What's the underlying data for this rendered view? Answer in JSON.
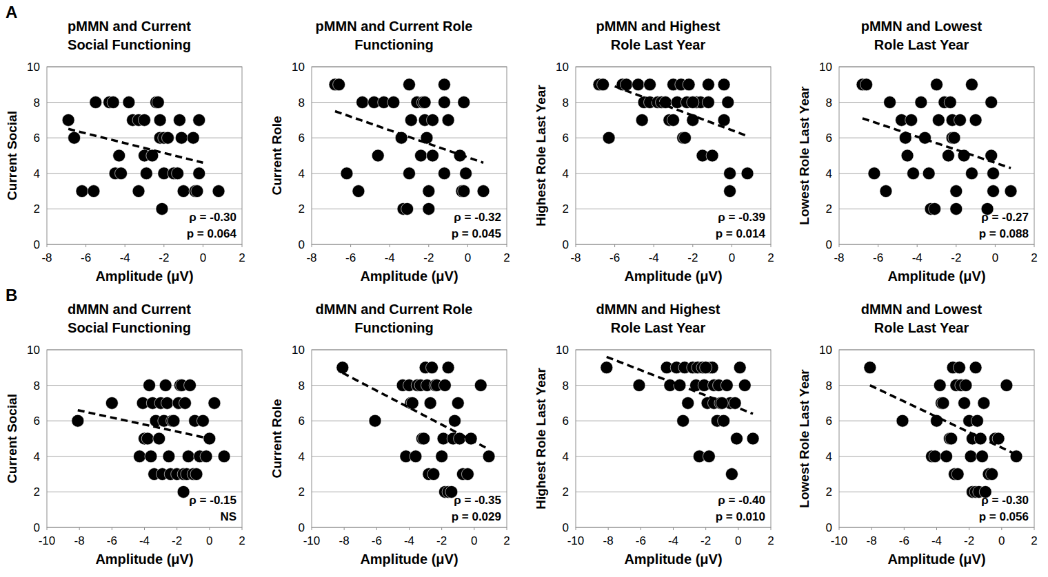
{
  "panel_labels": [
    "A",
    "B"
  ],
  "chart_data": [
    {
      "type": "scatter",
      "title": [
        "pMMN and Current",
        "Social Functioning"
      ],
      "x_label": "Amplitude (μV)",
      "y_label": "Current Social",
      "xlim": [
        -8,
        2
      ],
      "xticks": [
        -8,
        -6,
        -4,
        -2,
        0,
        2
      ],
      "ylim": [
        0,
        10
      ],
      "yticks": [
        0,
        2,
        4,
        6,
        8,
        10
      ],
      "grid": true,
      "annotations": [
        "ρ = -0.30",
        "p = 0.064"
      ],
      "series": [
        {
          "type": "scatter",
          "marker": "circle",
          "color": "#000000",
          "x": [
            -6.9,
            -6.6,
            -6.2,
            -5.6,
            -5.5,
            -4.8,
            -4.6,
            -4.5,
            -4.3,
            -4.2,
            -3.8,
            -3.6,
            -3.3,
            -3.3,
            -3.0,
            -3.0,
            -2.9,
            -2.6,
            -2.4,
            -2.3,
            -2.2,
            -2.2,
            -2.0,
            -2.0,
            -2.1,
            -1.8,
            -1.5,
            -1.3,
            -1.2,
            -1.1,
            -1.0,
            -0.5,
            -0.4,
            -0.2,
            -0.2,
            0.8,
            -0.3
          ],
          "values": [
            7,
            6,
            3,
            3,
            8,
            8,
            8,
            4,
            5,
            4,
            8,
            7,
            7,
            3,
            5,
            7,
            4,
            5,
            8,
            8,
            7,
            6,
            6,
            4,
            2,
            6,
            4,
            4,
            7,
            6,
            3,
            6,
            3,
            7,
            4,
            3,
            3
          ]
        },
        {
          "type": "line",
          "line_style": "dashed",
          "color": "#000000",
          "x": [
            -6.9,
            0.0
          ],
          "values": [
            6.5,
            4.6
          ]
        }
      ]
    },
    {
      "type": "scatter",
      "title": [
        "pMMN and Current Role",
        "Functioning"
      ],
      "x_label": "Amplitude (μV)",
      "y_label": "Current Role",
      "xlim": [
        -8,
        2
      ],
      "xticks": [
        -8,
        -6,
        -4,
        -2,
        0,
        2
      ],
      "ylim": [
        0,
        10
      ],
      "yticks": [
        0,
        2,
        4,
        6,
        8,
        10
      ],
      "grid": true,
      "annotations": [
        "ρ = -0.32",
        "p = 0.045"
      ],
      "series": [
        {
          "type": "scatter",
          "marker": "circle",
          "color": "#000000",
          "x": [
            -6.8,
            -6.6,
            -6.2,
            -5.6,
            -5.4,
            -4.8,
            -4.6,
            -4.3,
            -3.8,
            -3.4,
            -3.3,
            -3.1,
            -3.0,
            -3.0,
            -2.9,
            -2.6,
            -2.4,
            -2.3,
            -2.2,
            -2.2,
            -2.1,
            -2.0,
            -2.0,
            -1.8,
            -1.8,
            -1.2,
            -1.2,
            -1.2,
            -1.0,
            -0.4,
            -0.3,
            -0.2,
            -0.1,
            -0.2,
            0.8
          ],
          "values": [
            9,
            9,
            4,
            3,
            8,
            8,
            5,
            8,
            8,
            6,
            2,
            2,
            9,
            4,
            7,
            8,
            5,
            8,
            8,
            7,
            6,
            3,
            2,
            7,
            5,
            9,
            8,
            4,
            7,
            5,
            3,
            8,
            4,
            3,
            3
          ]
        },
        {
          "type": "line",
          "line_style": "dashed",
          "color": "#000000",
          "x": [
            -6.8,
            0.8
          ],
          "values": [
            7.5,
            4.6
          ]
        }
      ]
    },
    {
      "type": "scatter",
      "title": [
        "pMMN and Highest",
        "Role Last Year"
      ],
      "x_label": "Amplitude (μV)",
      "y_label": "Highest Role Last Year",
      "xlim": [
        -8,
        2
      ],
      "xticks": [
        -8,
        -6,
        -4,
        -2,
        0,
        2
      ],
      "ylim": [
        0,
        10
      ],
      "yticks": [
        0,
        2,
        4,
        6,
        8,
        10
      ],
      "grid": true,
      "annotations": [
        "ρ = -0.39",
        "p = 0.014"
      ],
      "series": [
        {
          "type": "scatter",
          "marker": "circle",
          "color": "#000000",
          "x": [
            -6.8,
            -6.6,
            -6.3,
            -5.6,
            -5.4,
            -4.8,
            -4.5,
            -4.6,
            -4.2,
            -4.2,
            -3.8,
            -3.6,
            -3.4,
            -3.2,
            -3.0,
            -3.0,
            -2.8,
            -2.6,
            -2.5,
            -2.4,
            -2.3,
            -2.2,
            -2.0,
            -1.8,
            -1.6,
            -1.5,
            -1.2,
            -1.2,
            -1.0,
            -0.4,
            -0.4,
            -0.2,
            -0.1,
            -0.1,
            0.8,
            -2.0
          ],
          "values": [
            9,
            9,
            6,
            9,
            9,
            9,
            8,
            7,
            9,
            8,
            8,
            8,
            8,
            7,
            9,
            7,
            8,
            9,
            6,
            6,
            8,
            9,
            7,
            8,
            8,
            5,
            9,
            8,
            5,
            9,
            7,
            8,
            4,
            3,
            4,
            8
          ]
        },
        {
          "type": "line",
          "line_style": "dashed",
          "color": "#000000",
          "x": [
            -6.0,
            0.8
          ],
          "values": [
            8.9,
            6.1
          ]
        }
      ]
    },
    {
      "type": "scatter",
      "title": [
        "pMMN and Lowest",
        "Role Last Year"
      ],
      "x_label": "Amplitude (μV)",
      "y_label": "Lowest Role Last Year",
      "xlim": [
        -8,
        2
      ],
      "xticks": [
        -8,
        -6,
        -4,
        -2,
        0,
        2
      ],
      "ylim": [
        0,
        10
      ],
      "yticks": [
        0,
        2,
        4,
        6,
        8,
        10
      ],
      "grid": true,
      "annotations": [
        "ρ = -0.27",
        "p = 0.088"
      ],
      "series": [
        {
          "type": "scatter",
          "marker": "circle",
          "color": "#000000",
          "x": [
            -6.8,
            -6.6,
            -6.2,
            -5.6,
            -5.4,
            -4.8,
            -4.6,
            -4.5,
            -4.3,
            -4.2,
            -3.8,
            -3.6,
            -3.4,
            -3.3,
            -3.1,
            -3.0,
            -2.9,
            -2.6,
            -2.4,
            -2.3,
            -2.2,
            -2.2,
            -2.1,
            -2.0,
            -2.0,
            -1.8,
            -1.6,
            -1.2,
            -1.2,
            -1.0,
            -0.4,
            -0.2,
            -0.2,
            -0.1,
            -0.1,
            0.8
          ],
          "values": [
            9,
            9,
            4,
            3,
            8,
            7,
            6,
            5,
            7,
            4,
            8,
            6,
            4,
            2,
            2,
            9,
            7,
            8,
            5,
            8,
            7,
            6,
            6,
            3,
            2,
            7,
            5,
            9,
            4,
            7,
            2,
            8,
            5,
            4,
            3,
            3
          ]
        },
        {
          "type": "line",
          "line_style": "dashed",
          "color": "#000000",
          "x": [
            -6.8,
            0.8
          ],
          "values": [
            7.1,
            4.3
          ]
        }
      ]
    },
    {
      "type": "scatter",
      "title": [
        "dMMN and Current",
        "Social Functioning"
      ],
      "x_label": "Amplitude (μV)",
      "y_label": "Current Social",
      "xlim": [
        -10,
        2
      ],
      "xticks": [
        -10,
        -8,
        -6,
        -4,
        -2,
        0,
        2
      ],
      "ylim": [
        0,
        10
      ],
      "yticks": [
        0,
        2,
        4,
        6,
        8,
        10
      ],
      "grid": true,
      "annotations": [
        "ρ = -0.15",
        "NS"
      ],
      "series": [
        {
          "type": "scatter",
          "marker": "circle",
          "color": "#000000",
          "x": [
            -8.1,
            -6.0,
            -4.3,
            -4.1,
            -4.0,
            -3.8,
            -3.7,
            -3.6,
            -3.5,
            -3.4,
            -3.3,
            -3.1,
            -3.0,
            -2.9,
            -2.8,
            -2.7,
            -2.6,
            -2.5,
            -2.4,
            -2.3,
            -2.2,
            -2.0,
            -1.9,
            -1.8,
            -1.7,
            -1.6,
            -1.6,
            -1.5,
            -1.4,
            -1.3,
            -1.2,
            -1.0,
            -0.9,
            -0.8,
            -0.6,
            -0.4,
            -0.2,
            0.3,
            0.9,
            0.0
          ],
          "values": [
            6,
            7,
            4,
            7,
            5,
            5,
            8,
            4,
            7,
            3,
            6,
            5,
            7,
            3,
            6,
            8,
            7,
            4,
            3,
            6,
            6,
            3,
            7,
            8,
            8,
            3,
            2,
            7,
            3,
            4,
            8,
            3,
            6,
            3,
            4,
            6,
            4,
            7,
            4,
            5
          ]
        },
        {
          "type": "line",
          "line_style": "dashed",
          "color": "#000000",
          "x": [
            -8.1,
            0.5
          ],
          "values": [
            6.6,
            4.9
          ]
        }
      ]
    },
    {
      "type": "scatter",
      "title": [
        "dMMN and Current Role",
        "Functioning"
      ],
      "x_label": "Amplitude (μV)",
      "y_label": "Current Role",
      "xlim": [
        -10,
        2
      ],
      "xticks": [
        -10,
        -8,
        -6,
        -4,
        -2,
        0,
        2
      ],
      "ylim": [
        0,
        10
      ],
      "yticks": [
        0,
        2,
        4,
        6,
        8,
        10
      ],
      "grid": true,
      "annotations": [
        "ρ = -0.35",
        "p = 0.029"
      ],
      "series": [
        {
          "type": "scatter",
          "marker": "circle",
          "color": "#000000",
          "x": [
            -8.1,
            -6.1,
            -4.4,
            -4.2,
            -4.0,
            -3.9,
            -3.8,
            -3.6,
            -3.5,
            -3.3,
            -3.2,
            -3.1,
            -3.0,
            -2.9,
            -2.8,
            -2.7,
            -2.6,
            -2.5,
            -2.4,
            -2.3,
            -2.0,
            -1.9,
            -1.8,
            -1.8,
            -1.6,
            -1.6,
            -1.4,
            -1.3,
            -1.2,
            -1.0,
            -0.9,
            -0.7,
            -0.4,
            -0.2,
            0.4,
            0.9
          ],
          "values": [
            9,
            6,
            8,
            4,
            8,
            7,
            7,
            4,
            8,
            8,
            5,
            5,
            9,
            8,
            3,
            7,
            9,
            3,
            8,
            8,
            4,
            5,
            8,
            2,
            9,
            2,
            2,
            5,
            6,
            7,
            5,
            3,
            3,
            5,
            8,
            4
          ]
        },
        {
          "type": "line",
          "line_style": "dashed",
          "color": "#000000",
          "x": [
            -8.1,
            0.9
          ],
          "values": [
            8.7,
            4.4
          ]
        }
      ]
    },
    {
      "type": "scatter",
      "title": [
        "dMMN and Highest",
        "Role Last Year"
      ],
      "x_label": "Amplitude (μV)",
      "y_label": "Highest Role Last Year",
      "xlim": [
        -10,
        2
      ],
      "xticks": [
        -10,
        -8,
        -6,
        -4,
        -2,
        0,
        2
      ],
      "ylim": [
        0,
        10
      ],
      "yticks": [
        0,
        2,
        4,
        6,
        8,
        10
      ],
      "grid": true,
      "annotations": [
        "ρ = -0.40",
        "p = 0.010"
      ],
      "series": [
        {
          "type": "scatter",
          "marker": "circle",
          "color": "#000000",
          "x": [
            -8.1,
            -6.1,
            -4.4,
            -4.2,
            -3.8,
            -3.6,
            -3.4,
            -3.3,
            -3.1,
            -2.8,
            -2.6,
            -2.5,
            -2.4,
            -2.2,
            -2.1,
            -1.9,
            -1.8,
            -1.7,
            -1.6,
            -1.5,
            -1.5,
            -1.3,
            -1.2,
            -1.1,
            -0.9,
            -0.7,
            -0.5,
            -0.4,
            -0.2,
            -0.1,
            0.1,
            0.4,
            0.9,
            -2.0,
            -1.0
          ],
          "values": [
            9,
            8,
            9,
            8,
            9,
            8,
            6,
            9,
            7,
            9,
            8,
            9,
            4,
            9,
            8,
            7,
            4,
            9,
            9,
            8,
            7,
            6,
            8,
            7,
            6,
            8,
            7,
            3,
            7,
            5,
            9,
            8,
            5,
            9,
            7
          ]
        },
        {
          "type": "line",
          "line_style": "dashed",
          "color": "#000000",
          "x": [
            -8.1,
            0.9
          ],
          "values": [
            9.6,
            6.4
          ]
        }
      ]
    },
    {
      "type": "scatter",
      "title": [
        "dMMN and Lowest",
        "Role Last Year"
      ],
      "x_label": "Amplitude (μV)",
      "y_label": "Lowest Role Last Year",
      "xlim": [
        -10,
        2
      ],
      "xticks": [
        -10,
        -8,
        -6,
        -4,
        -2,
        0,
        2
      ],
      "ylim": [
        0,
        10
      ],
      "yticks": [
        0,
        2,
        4,
        6,
        8,
        10
      ],
      "grid": true,
      "annotations": [
        "ρ = -0.30",
        "p = 0.056"
      ],
      "series": [
        {
          "type": "scatter",
          "marker": "circle",
          "color": "#000000",
          "x": [
            -8.1,
            -6.1,
            -4.3,
            -4.1,
            -4.0,
            -3.8,
            -3.7,
            -3.6,
            -3.4,
            -3.2,
            -3.1,
            -3.0,
            -2.9,
            -2.8,
            -2.7,
            -2.6,
            -2.5,
            -2.3,
            -2.2,
            -2.0,
            -1.9,
            -1.8,
            -1.8,
            -1.6,
            -1.6,
            -1.5,
            -1.4,
            -1.3,
            -1.2,
            -1.1,
            -0.8,
            -0.6,
            -0.4,
            -0.2,
            0.3,
            0.9,
            -1.0
          ],
          "values": [
            9,
            6,
            4,
            4,
            6,
            8,
            7,
            7,
            4,
            5,
            5,
            9,
            3,
            8,
            3,
            9,
            8,
            7,
            8,
            6,
            4,
            2,
            5,
            9,
            2,
            6,
            2,
            5,
            4,
            7,
            3,
            3,
            5,
            5,
            8,
            4,
            2
          ]
        },
        {
          "type": "line",
          "line_style": "dashed",
          "color": "#000000",
          "x": [
            -8.1,
            0.9
          ],
          "values": [
            8.0,
            4.1
          ]
        }
      ]
    }
  ]
}
